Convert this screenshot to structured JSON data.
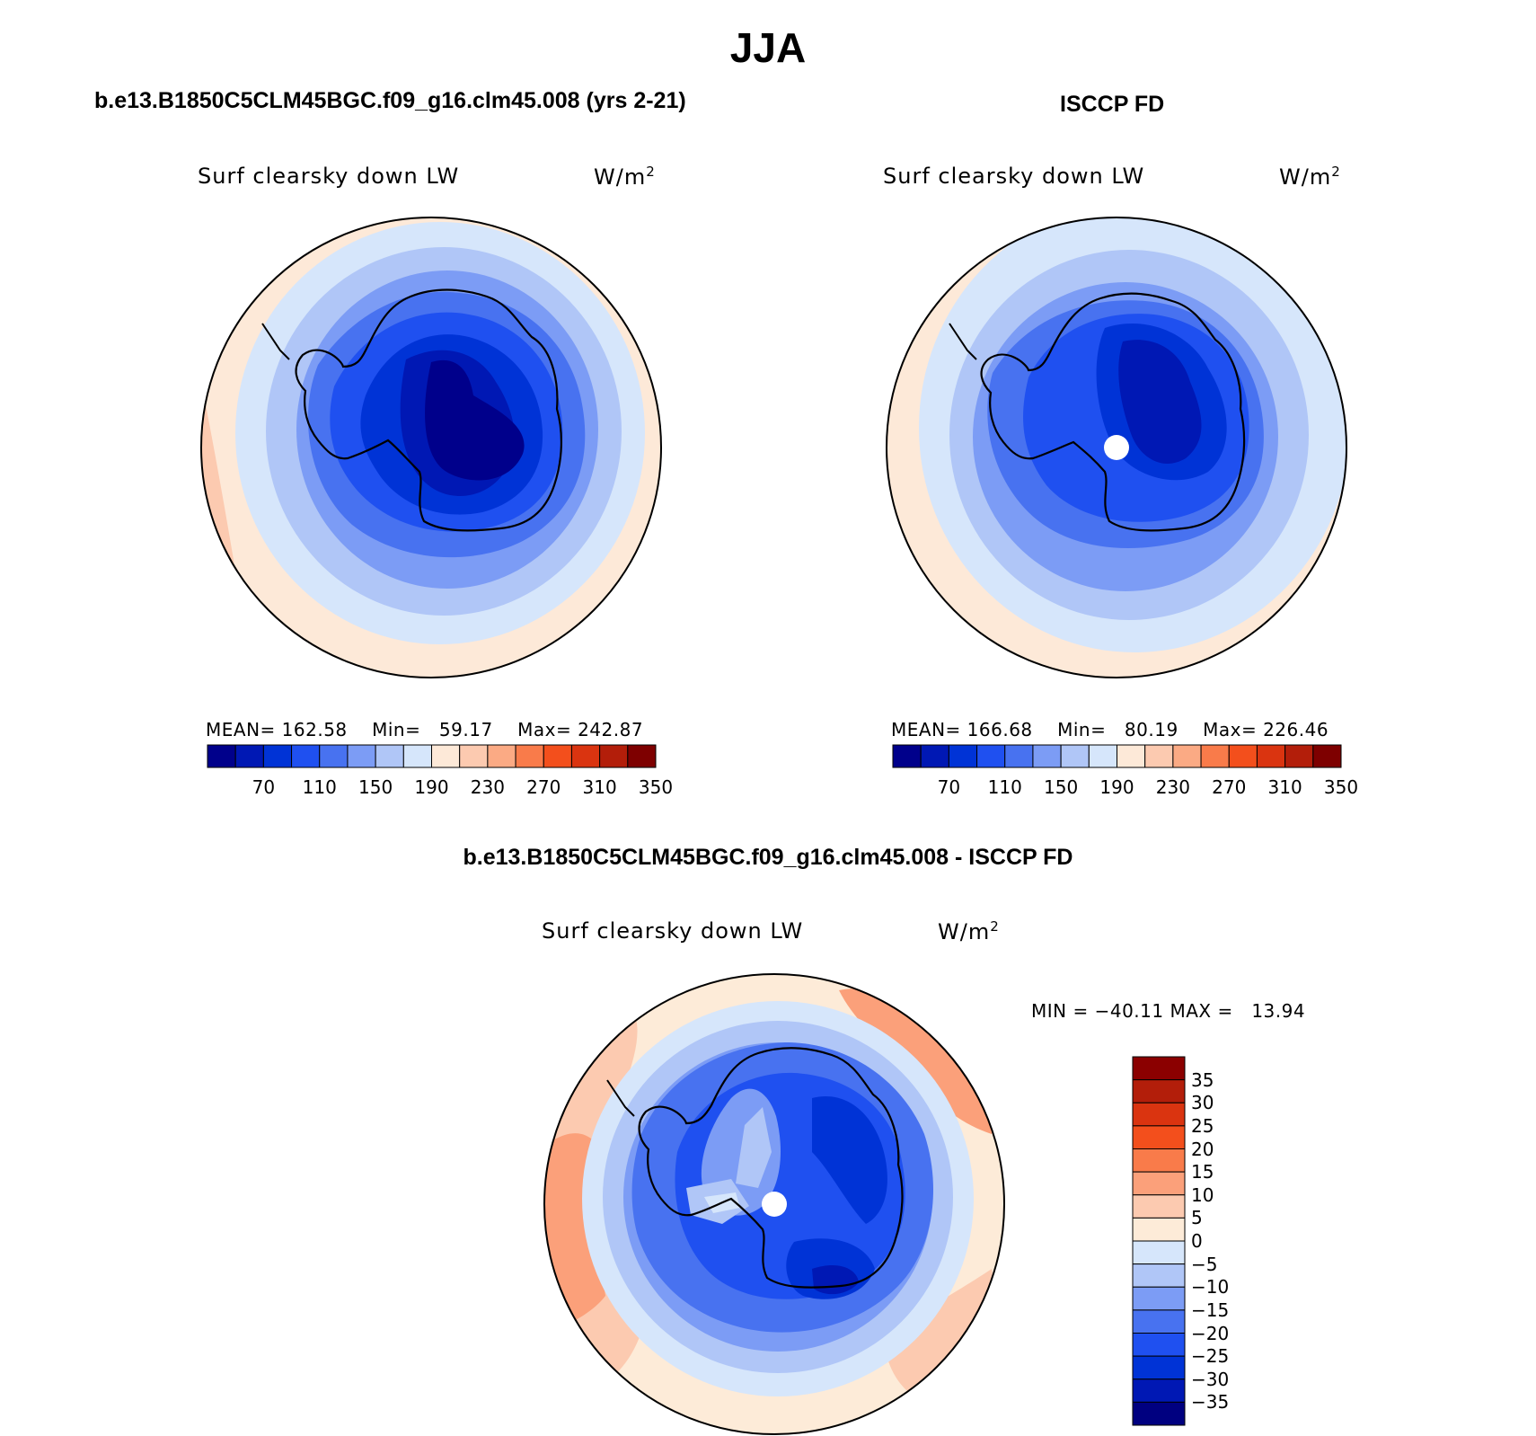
{
  "title": "JJA",
  "palette": [
    "#00008b",
    "#0018b4",
    "#0033d6",
    "#1f50f0",
    "#4872f0",
    "#7c9cf5",
    "#b0c6f7",
    "#d6e6fb",
    "#fde9d8",
    "#fccab0",
    "#fbaa84",
    "#f97b4a",
    "#f34f1c",
    "#da3410",
    "#b31e0a",
    "#7e0000"
  ],
  "diff_palette": [
    "#000080",
    "#0018b4",
    "#0033d6",
    "#1f50f0",
    "#4872f0",
    "#7c9cf5",
    "#b0c6f7",
    "#d6e6fb",
    "#fdebd8",
    "#fccab0",
    "#fba07a",
    "#f97b4a",
    "#f34f1c",
    "#da3410",
    "#b31e0a",
    "#8b0000"
  ],
  "panels": {
    "model": {
      "title": "b.e13.B1850C5CLM45BGC.f09_g16.clm45.008 (yrs 2-21)",
      "variable": "Surf clearsky down LW",
      "units": "W/m",
      "units_sup": "2",
      "stats": {
        "mean_label": "MEAN=",
        "mean": "162.58",
        "min_label": "Min=",
        "min": "59.17",
        "max_label": "Max=",
        "max": "242.87"
      },
      "colorbar_ticks": [
        "70",
        "110",
        "150",
        "190",
        "230",
        "270",
        "310",
        "350"
      ]
    },
    "obs": {
      "title": "ISCCP FD",
      "variable": "Surf clearsky down LW",
      "units": "W/m",
      "units_sup": "2",
      "stats": {
        "mean_label": "MEAN=",
        "mean": "166.68",
        "min_label": "Min=",
        "min": "80.19",
        "max_label": "Max=",
        "max": "226.46"
      },
      "colorbar_ticks": [
        "70",
        "110",
        "150",
        "190",
        "230",
        "270",
        "310",
        "350"
      ]
    },
    "diff": {
      "title": "b.e13.B1850C5CLM45BGC.f09_g16.clm45.008 - ISCCP FD",
      "variable": "Surf clearsky down LW",
      "units": "W/m",
      "units_sup": "2",
      "stats": {
        "min_label": "MIN =",
        "min": "−40.11",
        "max_label": "MAX =",
        "max": "13.94"
      },
      "colorbar_ticks": [
        "35",
        "30",
        "25",
        "20",
        "15",
        "10",
        "5",
        "0",
        "−5",
        "−10",
        "−15",
        "−20",
        "−25",
        "−30",
        "−35"
      ]
    }
  }
}
